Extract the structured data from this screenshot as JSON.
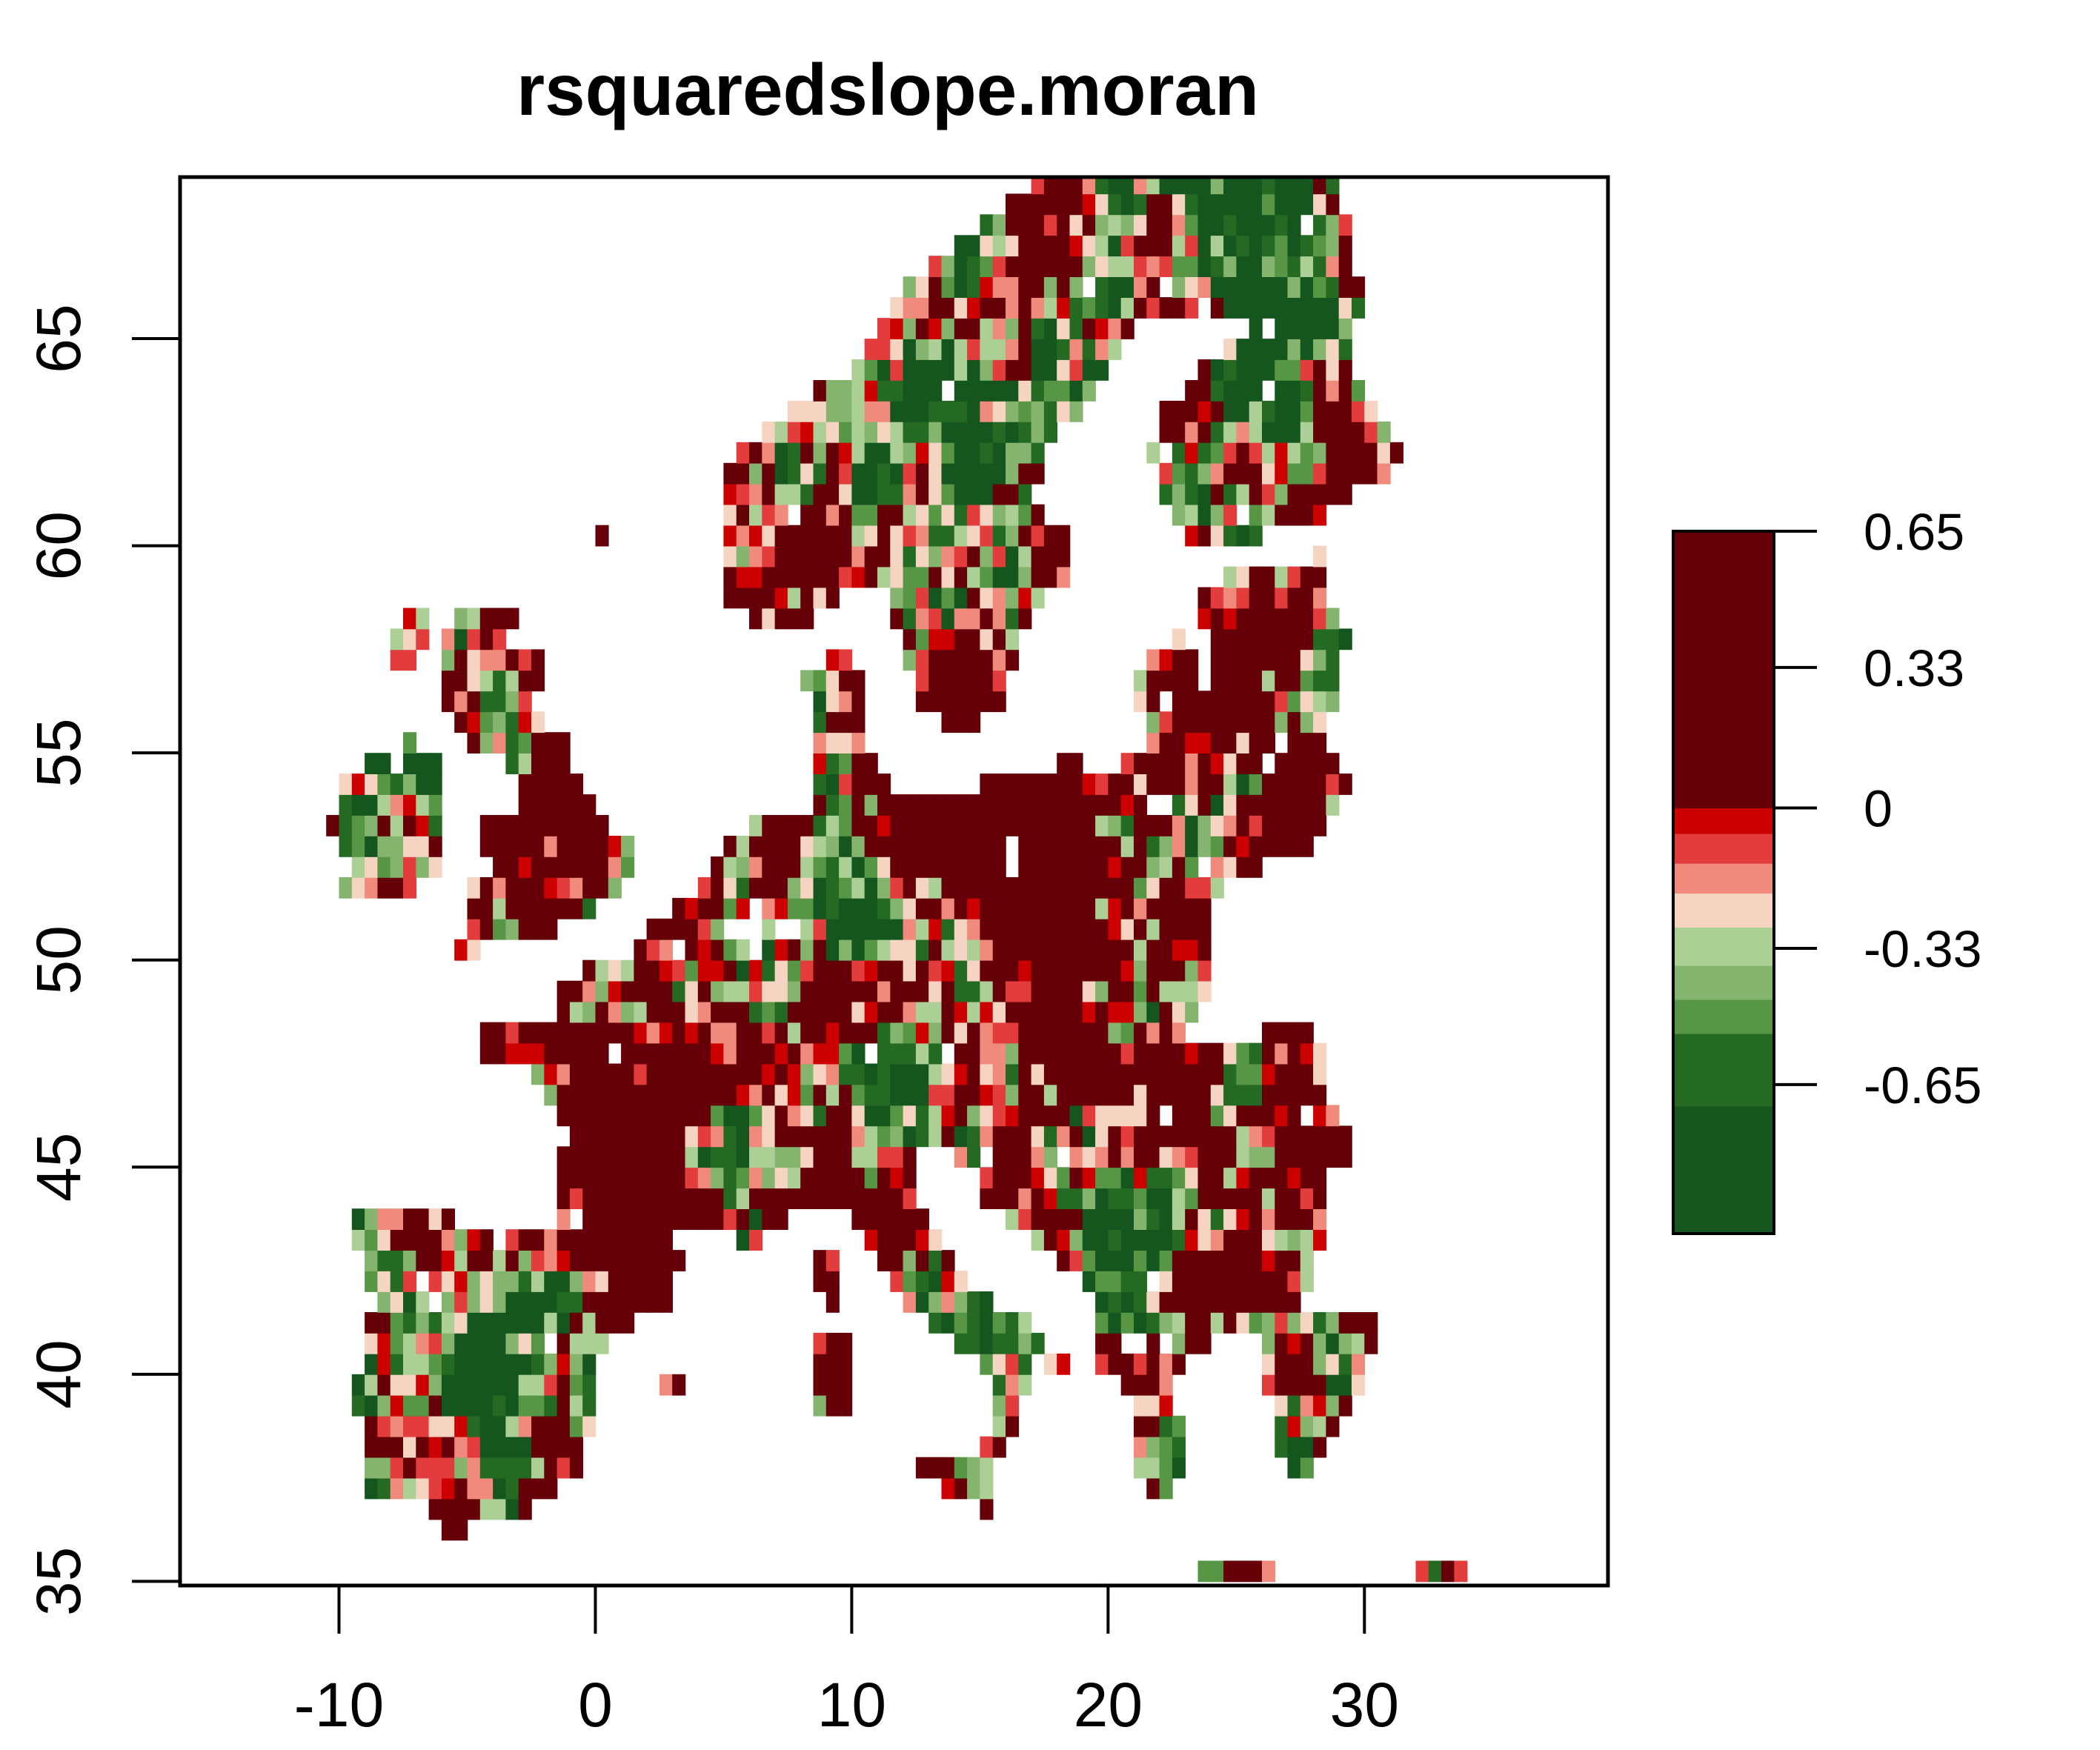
{
  "title": "rsquaredslope.moran",
  "map": {
    "x_ticks": [
      -10,
      0,
      10,
      20,
      30
    ],
    "y_ticks": [
      35,
      40,
      45,
      50,
      55,
      60,
      65
    ],
    "xlim": [
      -16.2,
      39.5
    ],
    "ylim": [
      34.9,
      68.9
    ],
    "cell_size_deg": 0.5
  },
  "legend": {
    "labels": [
      "0.65",
      "0.33",
      "0",
      "-0.33",
      "-0.65"
    ],
    "tick_values": [
      0.65,
      0.33,
      0,
      -0.33,
      -0.65
    ],
    "range": [
      -1.0,
      0.65
    ],
    "breaks": [
      -1.0,
      -0.7,
      -0.53,
      -0.45,
      -0.37,
      -0.28,
      -0.2,
      -0.13,
      -0.06,
      0,
      0.65
    ],
    "colors": [
      "#15561f",
      "#246a22",
      "#579645",
      "#84b46e",
      "#accf96",
      "#f5d4c2",
      "#f08a7c",
      "#e23d3c",
      "#cc0000",
      "#650009"
    ]
  }
}
